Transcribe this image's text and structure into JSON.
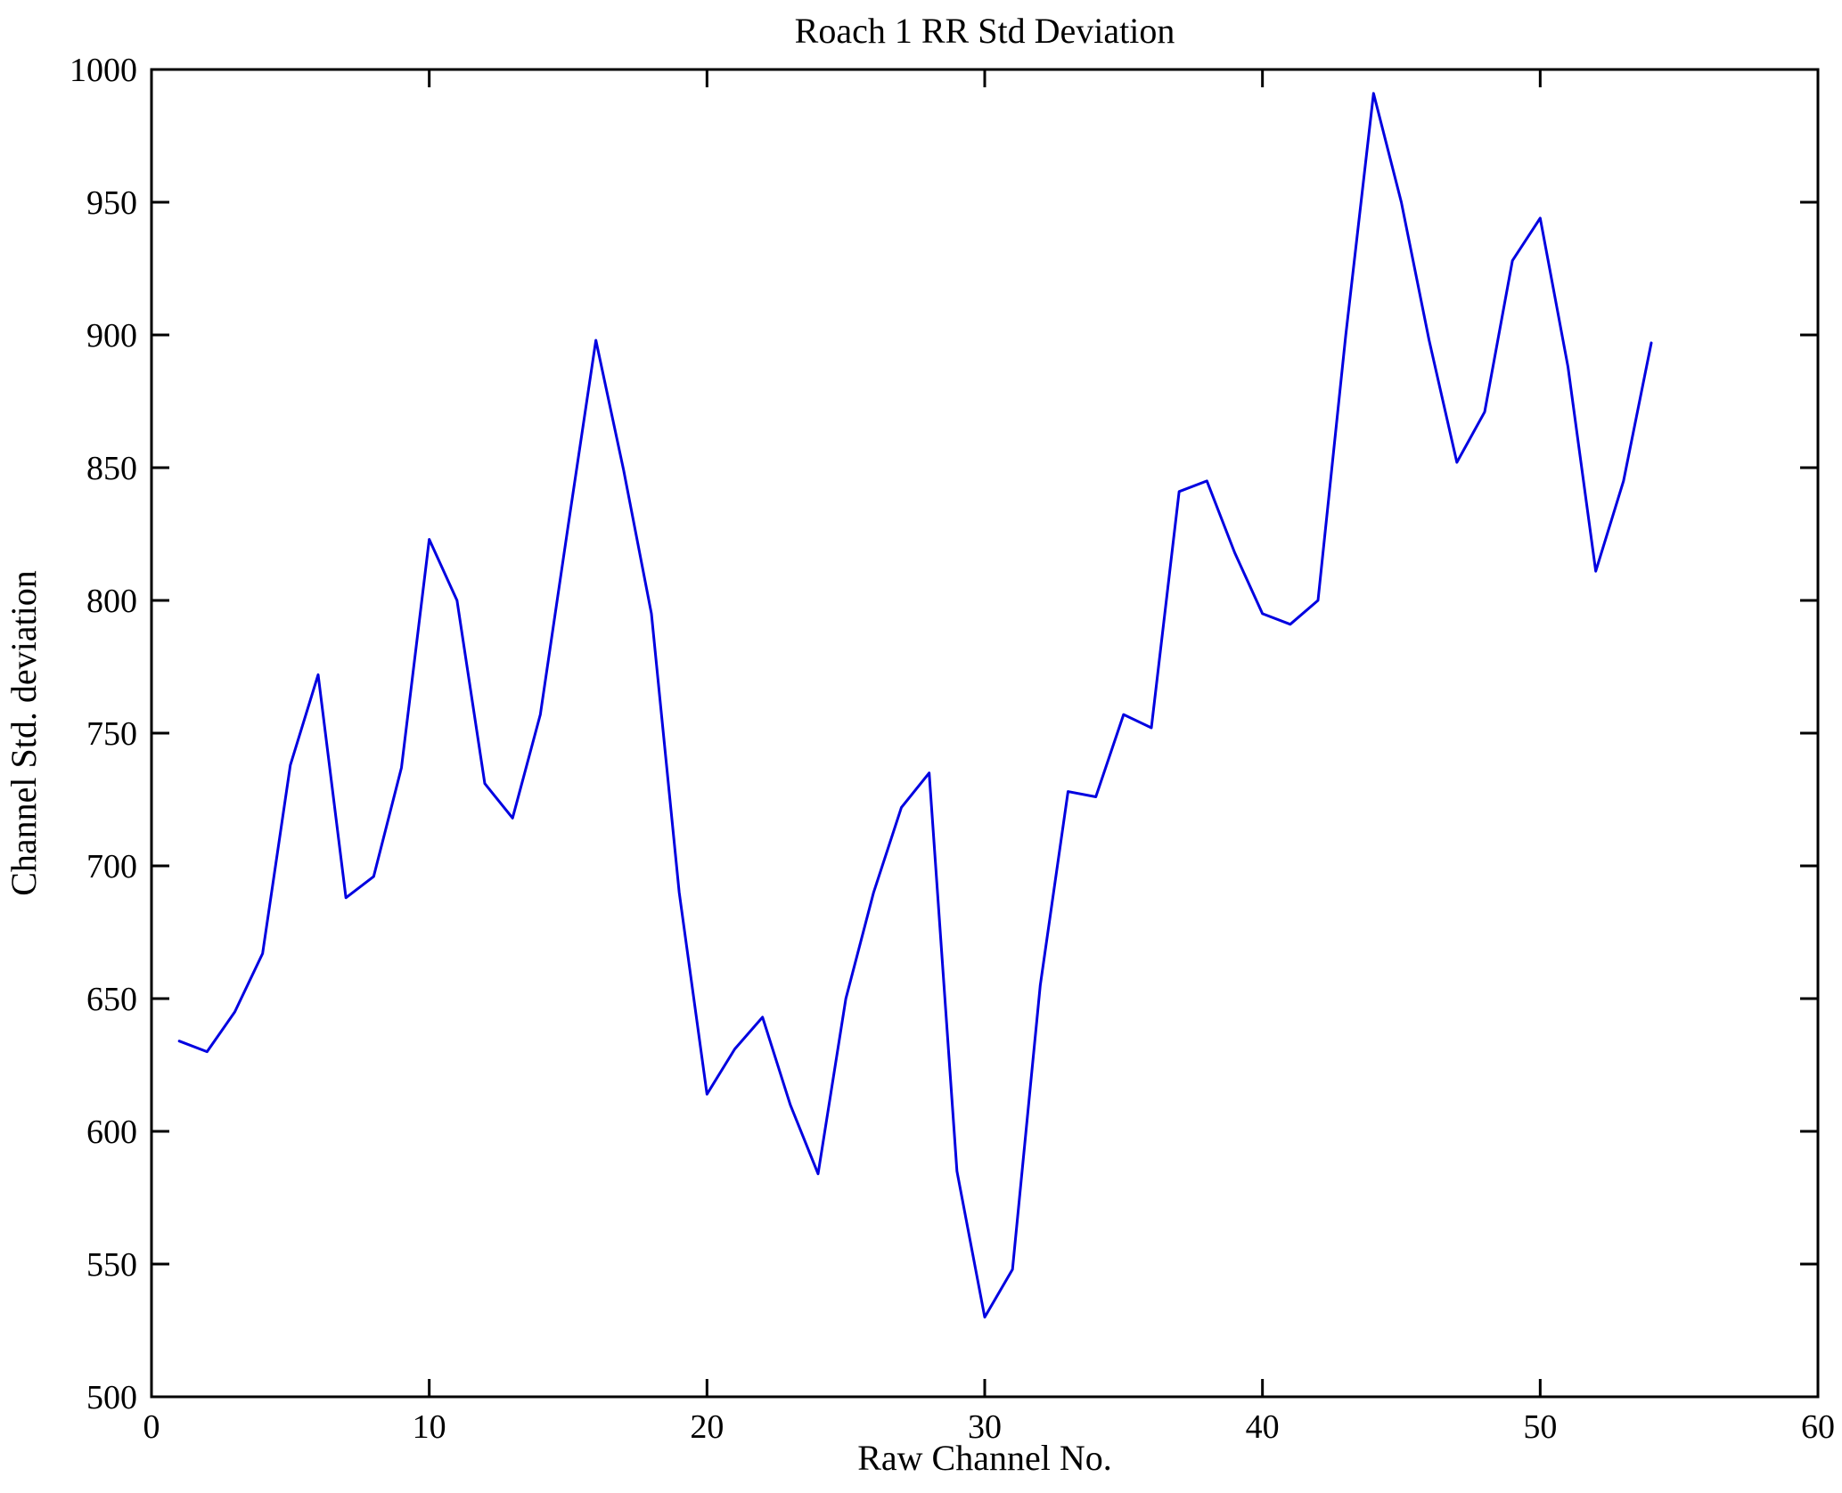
{
  "chart_data": {
    "type": "line",
    "title": "Roach 1 RR Std Deviation",
    "xlabel": "Raw Channel No.",
    "ylabel": "Channel Std. deviation",
    "xlim": [
      0,
      60
    ],
    "ylim": [
      500,
      1000
    ],
    "xticks": [
      0,
      10,
      20,
      30,
      40,
      50,
      60
    ],
    "yticks": [
      500,
      550,
      600,
      650,
      700,
      750,
      800,
      850,
      900,
      950,
      1000
    ],
    "grid": false,
    "legend": "none",
    "line_color": "#0000E0",
    "x": [
      1,
      2,
      3,
      4,
      5,
      6,
      7,
      8,
      9,
      10,
      11,
      12,
      13,
      14,
      15,
      16,
      17,
      18,
      19,
      20,
      21,
      22,
      23,
      24,
      25,
      26,
      27,
      28,
      29,
      30,
      31,
      32,
      33,
      34,
      35,
      36,
      37,
      38,
      39,
      40,
      41,
      42,
      43,
      44,
      45,
      46,
      47,
      48,
      49,
      50,
      51,
      52,
      53,
      54
    ],
    "values": [
      634,
      630,
      645,
      667,
      738,
      772,
      688,
      696,
      737,
      823,
      800,
      731,
      718,
      757,
      828,
      898,
      849,
      795,
      690,
      614,
      631,
      643,
      610,
      584,
      650,
      690,
      722,
      735,
      585,
      530,
      548,
      655,
      728,
      726,
      757,
      752,
      841,
      845,
      818,
      795,
      791,
      800,
      900,
      991,
      950,
      898,
      852,
      871,
      928,
      944,
      888,
      811,
      845,
      897
    ]
  }
}
